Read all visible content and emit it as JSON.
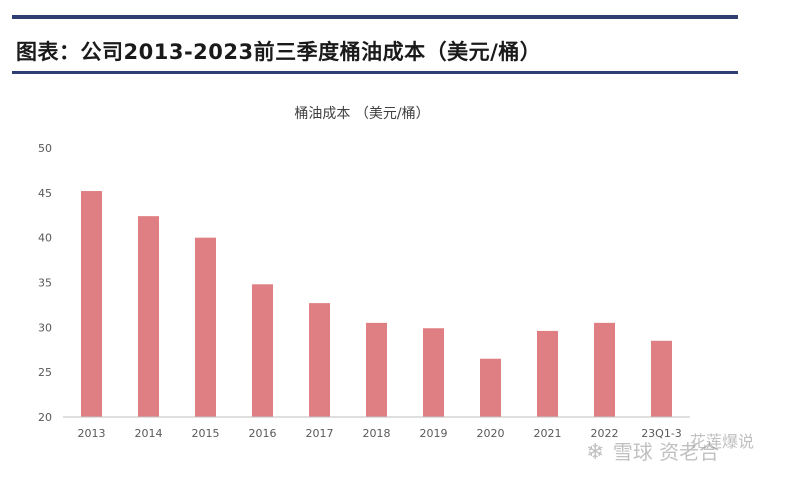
{
  "header": {
    "title": "图表：公司2013-2023前三季度桶油成本（美元/桶）"
  },
  "chart_data": {
    "type": "bar",
    "title": "桶油成本 （美元/桶）",
    "categories": [
      "2013",
      "2014",
      "2015",
      "2016",
      "2017",
      "2018",
      "2019",
      "2020",
      "2021",
      "2022",
      "23Q1-3"
    ],
    "values": [
      45.2,
      42.4,
      40.0,
      34.8,
      32.7,
      30.5,
      29.9,
      26.5,
      29.6,
      30.5,
      28.5
    ],
    "ylim": [
      20,
      50
    ],
    "yticks": [
      20,
      25,
      30,
      35,
      40,
      45,
      50
    ],
    "xlabel": "",
    "ylabel": "",
    "grid": false,
    "colors": {
      "bar": "#e07f83",
      "axis": "#bfbfbf",
      "tick_label": "#595959",
      "title": "#404040"
    }
  },
  "watermark": {
    "icon": "snowball-logo-icon",
    "brand": "雪球",
    "author_top": "花莲爆说",
    "author_bottom": "资老合"
  }
}
